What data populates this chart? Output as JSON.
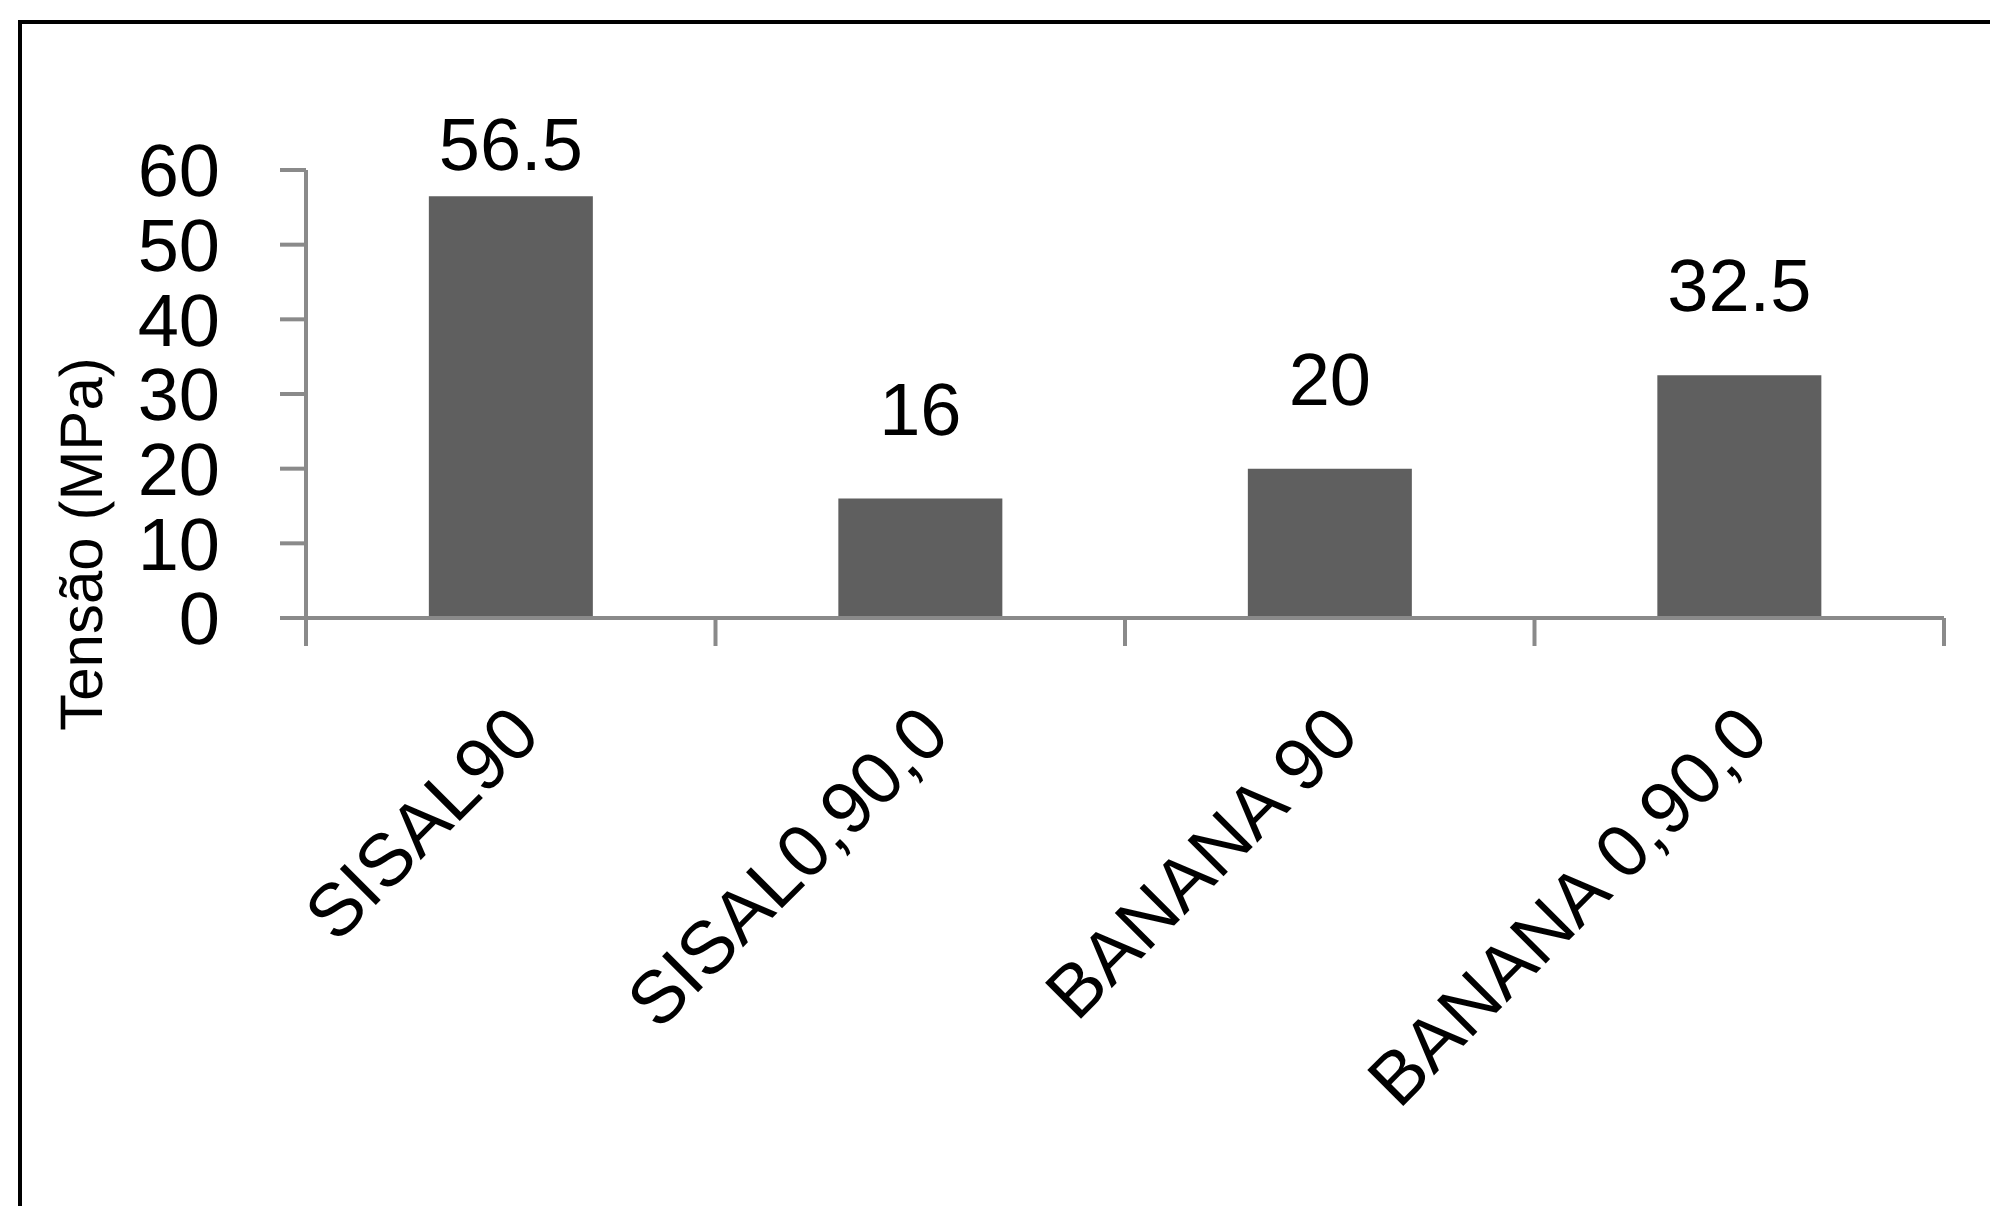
{
  "chart_data": {
    "type": "bar",
    "ylabel": "Tensão (MPa)",
    "categories": [
      "SISAL90",
      "SISAL0,90,0",
      "BANANA 90",
      "BANANA 0,90,0"
    ],
    "values": [
      56.5,
      16,
      20,
      32.5
    ],
    "color": "#5f5f5f",
    "ylim": [
      0,
      60
    ],
    "yticks": [
      0,
      10,
      20,
      30,
      40,
      50,
      60
    ],
    "data_labels": true
  }
}
